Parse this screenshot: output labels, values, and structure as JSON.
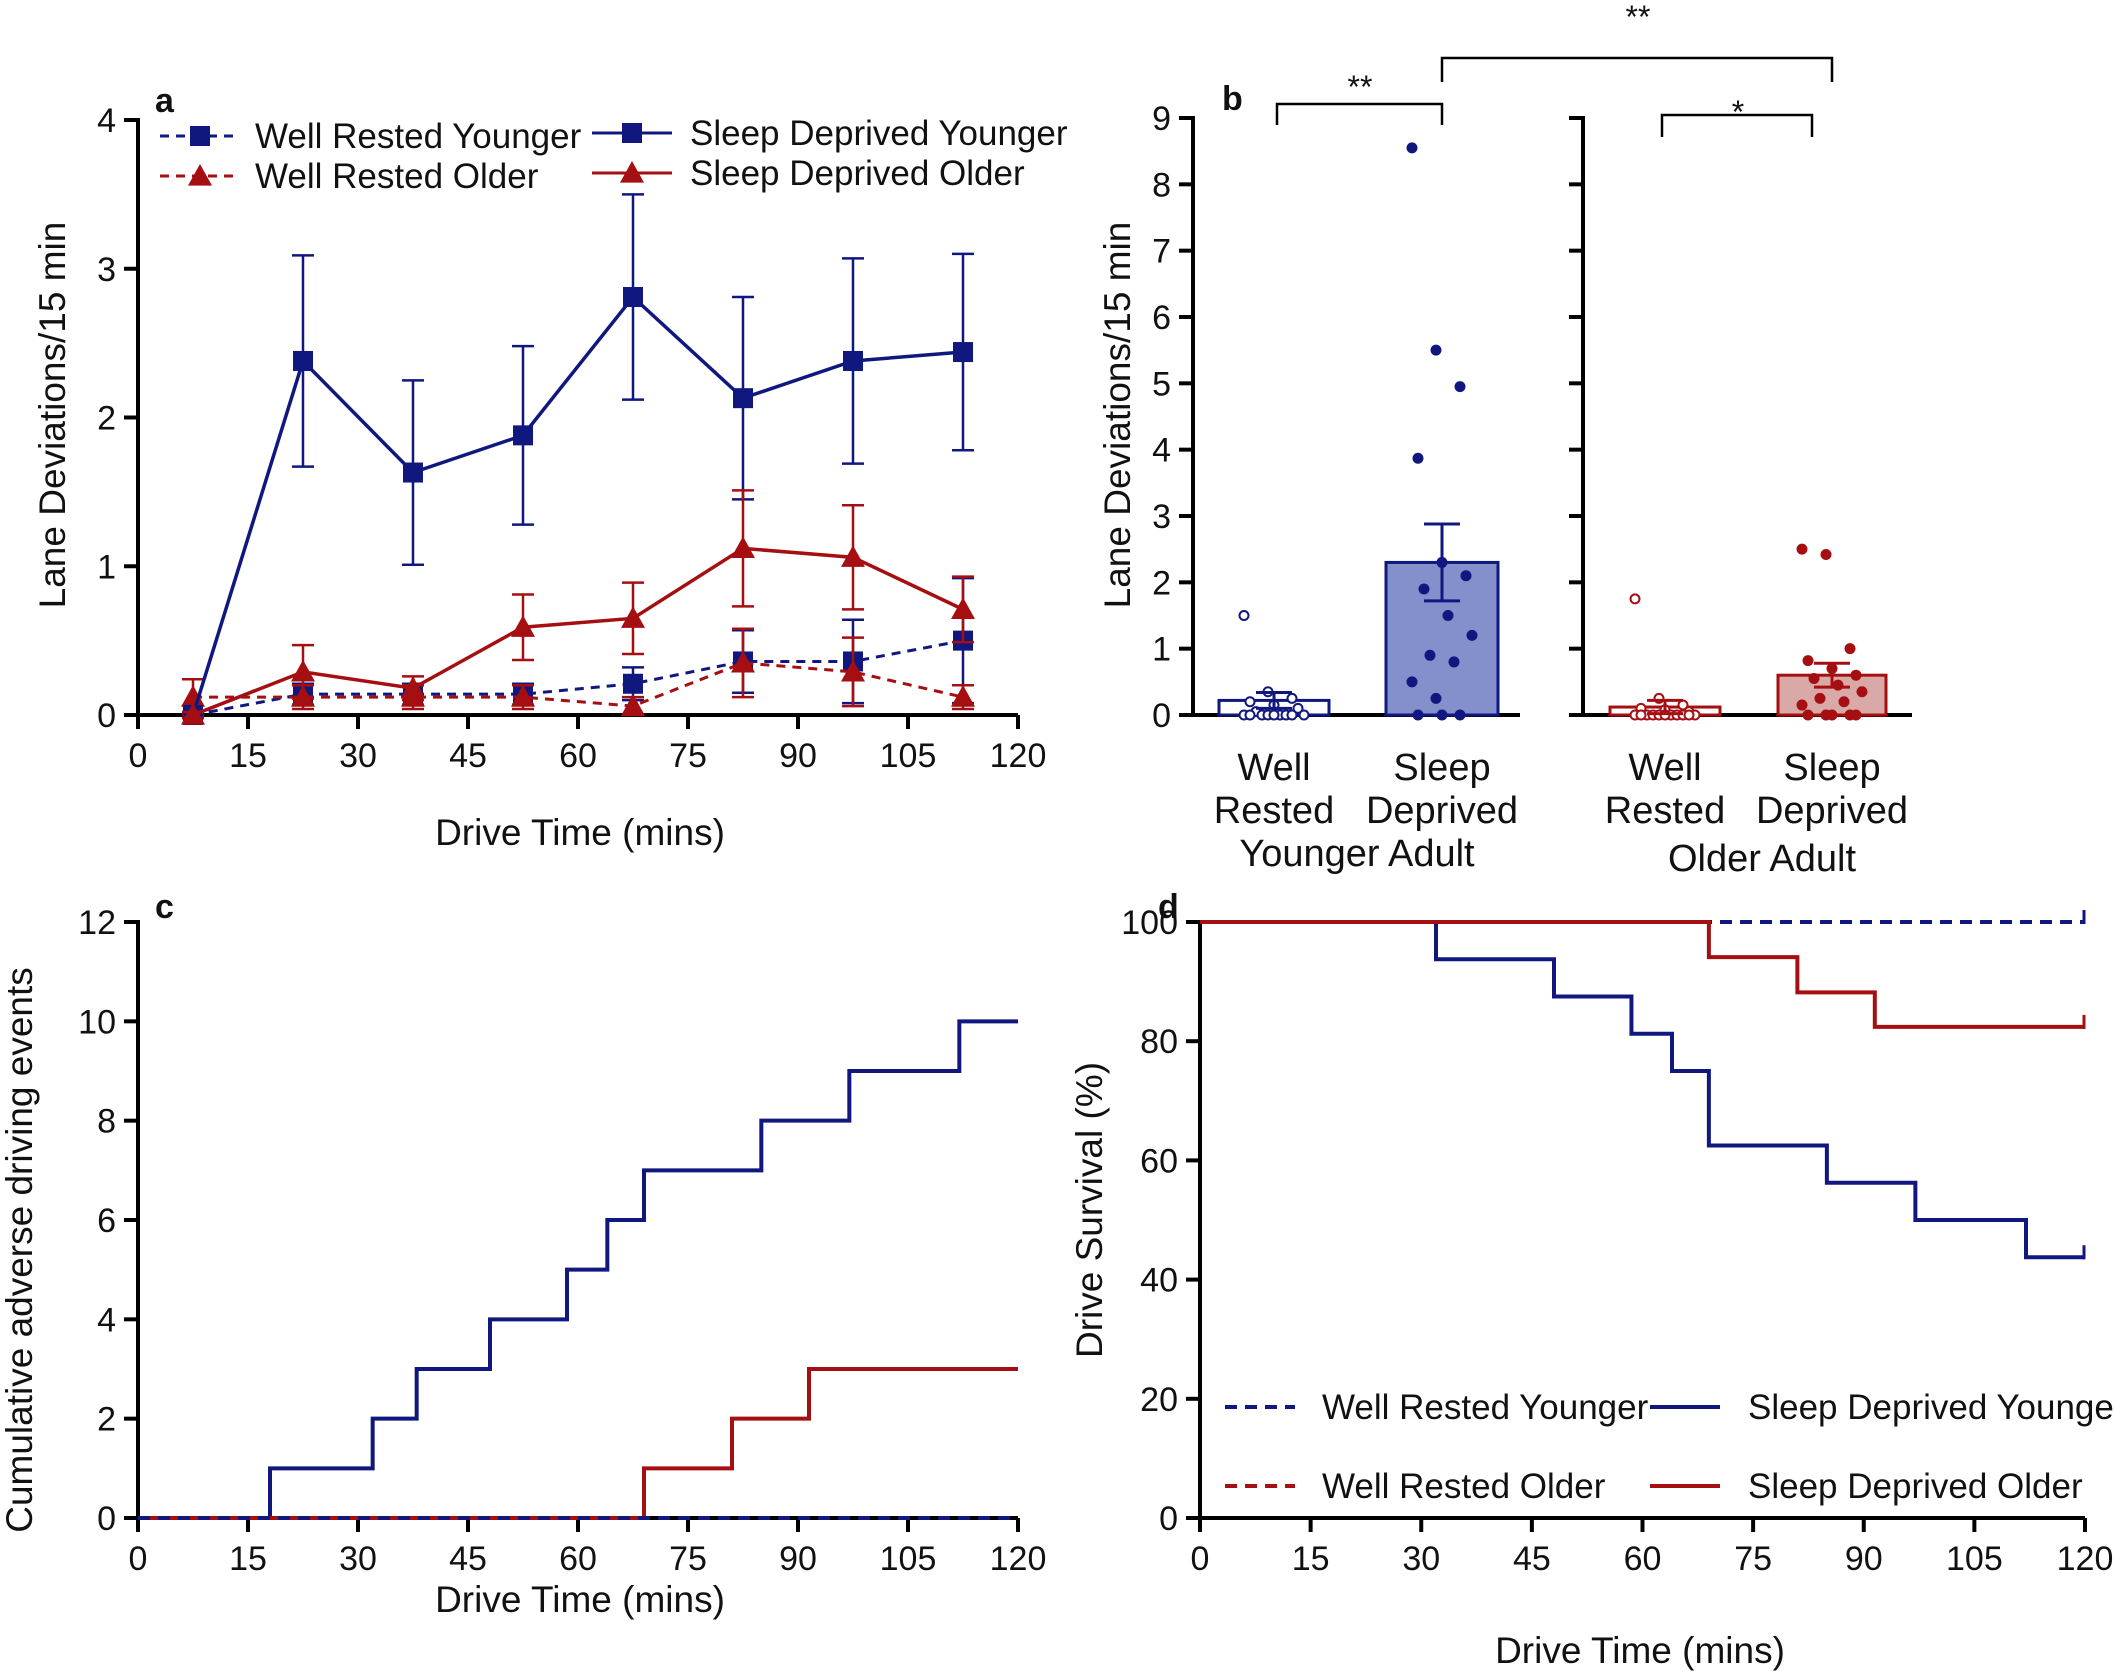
{
  "colors": {
    "younger": "#10187F",
    "older": "#A60F12",
    "younger_fill": "#8390CC",
    "older_fill": "#D9A9A8"
  },
  "panel_a": {
    "label": "a",
    "xlabel": "Drive Time (mins)",
    "ylabel": "Lane Deviations/15 min",
    "legend": [
      "Well Rested Younger",
      "Well Rested Older",
      "Sleep Deprived Younger",
      "Sleep Deprived Older"
    ]
  },
  "panel_b": {
    "label": "b",
    "ylabel": "Lane Deviations/15 min",
    "categories": [
      "Well",
      "Rested",
      "Sleep",
      "Deprived",
      "Well",
      "Rested",
      "Sleep",
      "Deprived"
    ],
    "groups": [
      "Younger Adult",
      "Older Adult"
    ],
    "sig": [
      "**",
      "**",
      "*"
    ]
  },
  "panel_c": {
    "label": "c",
    "xlabel": "Drive Time (mins)",
    "ylabel": "Cumulative adverse driving events"
  },
  "panel_d": {
    "label": "d",
    "xlabel": "Drive Time (mins)",
    "ylabel": "Drive Survival  (%)",
    "legend": [
      "Well Rested Younger",
      "Sleep Deprived Younger",
      "Well Rested Older",
      "Sleep Deprived Older"
    ]
  },
  "chart_data": [
    {
      "panel": "a",
      "type": "line",
      "xlim": [
        0,
        120
      ],
      "ylim": [
        0,
        4
      ],
      "xticks": [
        0,
        15,
        30,
        45,
        60,
        75,
        90,
        105,
        120
      ],
      "yticks": [
        0,
        1,
        2,
        3,
        4
      ],
      "x": [
        7.5,
        22.5,
        37.5,
        52.5,
        67.5,
        82.5,
        97.5,
        112.5
      ],
      "series": [
        {
          "name": "Well Rested Younger",
          "color": "younger",
          "dash": true,
          "marker": "square",
          "values": [
            0.0,
            0.14,
            0.14,
            0.14,
            0.21,
            0.36,
            0.36,
            0.5
          ],
          "err": [
            0.02,
            0.07,
            0.07,
            0.07,
            0.11,
            0.21,
            0.28,
            0.42
          ]
        },
        {
          "name": "Well Rested Older",
          "color": "older",
          "dash": true,
          "marker": "triangle",
          "values": [
            0.12,
            0.12,
            0.12,
            0.12,
            0.06,
            0.35,
            0.29,
            0.12
          ],
          "err": [
            0.12,
            0.08,
            0.08,
            0.08,
            0.06,
            0.23,
            0.23,
            0.08
          ]
        },
        {
          "name": "Sleep Deprived Younger",
          "color": "younger",
          "dash": false,
          "marker": "square",
          "values": [
            0.0,
            2.38,
            1.63,
            1.88,
            2.81,
            2.13,
            2.38,
            2.44
          ],
          "err": [
            0.02,
            0.71,
            0.62,
            0.6,
            0.69,
            0.68,
            0.69,
            0.66
          ]
        },
        {
          "name": "Sleep Deprived Older",
          "color": "older",
          "dash": false,
          "marker": "triangle",
          "values": [
            0.0,
            0.29,
            0.18,
            0.59,
            0.65,
            1.12,
            1.06,
            0.71
          ],
          "err": [
            0.02,
            0.18,
            0.08,
            0.22,
            0.24,
            0.39,
            0.35,
            0.22
          ]
        }
      ]
    },
    {
      "panel": "b",
      "type": "bar",
      "ylim": [
        0,
        9
      ],
      "yticks": [
        0,
        1,
        2,
        3,
        4,
        5,
        6,
        7,
        8,
        9
      ],
      "bars": [
        {
          "name": "Well Rested Younger",
          "color": "younger",
          "filled": false,
          "mean": 0.22,
          "sem": 0.12,
          "points": [
            1.5,
            0.35,
            0.25,
            0.2,
            0.15,
            0.1,
            0.05,
            0.0,
            0.0,
            0.0,
            0.0,
            0.0,
            0.0,
            0.0,
            0.0,
            0.0
          ]
        },
        {
          "name": "Sleep Deprived Younger",
          "color": "younger",
          "filled": true,
          "mean": 2.3,
          "sem": 0.58,
          "points": [
            8.55,
            5.5,
            4.95,
            3.87,
            2.3,
            2.1,
            1.9,
            1.5,
            1.2,
            0.9,
            0.8,
            0.5,
            0.25,
            0.0,
            0.0,
            0.0
          ]
        },
        {
          "name": "Well Rested Older",
          "color": "older",
          "filled": false,
          "mean": 0.12,
          "sem": 0.1,
          "points": [
            1.75,
            0.25,
            0.15,
            0.1,
            0.08,
            0.05,
            0.0,
            0.0,
            0.0,
            0.0,
            0.0,
            0.0,
            0.0,
            0.0,
            0.0,
            0.0,
            0.0
          ]
        },
        {
          "name": "Sleep Deprived Older",
          "color": "older",
          "filled": true,
          "mean": 0.6,
          "sem": 0.18,
          "points": [
            2.5,
            2.42,
            1.0,
            0.82,
            0.7,
            0.6,
            0.55,
            0.45,
            0.35,
            0.25,
            0.2,
            0.15,
            0.0,
            0.0,
            0.0,
            0.0,
            0.0
          ]
        }
      ]
    },
    {
      "panel": "c",
      "type": "line",
      "step": true,
      "xlim": [
        0,
        120
      ],
      "ylim": [
        0,
        12
      ],
      "xticks": [
        0,
        15,
        30,
        45,
        60,
        75,
        90,
        105,
        120
      ],
      "yticks": [
        0,
        2,
        4,
        6,
        8,
        10,
        12
      ],
      "series": [
        {
          "name": "Sleep Deprived Younger",
          "color": "younger",
          "dash": false,
          "events": [
            18,
            32,
            38,
            48,
            58.5,
            64,
            69,
            85,
            97,
            112
          ],
          "final": 11
        },
        {
          "name": "Sleep Deprived Older",
          "color": "older",
          "dash": false,
          "events": [
            69,
            81,
            91.5
          ],
          "final": 3
        },
        {
          "name": "Well Rested Older",
          "color": "older",
          "dash": true,
          "events": [],
          "final": 0
        },
        {
          "name": "Well Rested Younger",
          "color": "younger",
          "dash": true,
          "events": [],
          "final": 0
        }
      ]
    },
    {
      "panel": "d",
      "type": "line",
      "step": true,
      "xlim": [
        0,
        120
      ],
      "ylim": [
        0,
        100
      ],
      "xticks": [
        0,
        15,
        30,
        45,
        60,
        75,
        90,
        105,
        120
      ],
      "yticks": [
        0,
        20,
        40,
        60,
        80,
        100
      ],
      "series": [
        {
          "name": "Well Rested Younger",
          "color": "younger",
          "dash": true,
          "steps": [
            [
              0,
              100
            ],
            [
              120,
              100
            ]
          ]
        },
        {
          "name": "Sleep Deprived Younger",
          "color": "younger",
          "dash": false,
          "steps": [
            [
              0,
              100
            ],
            [
              32,
              93.75
            ],
            [
              48,
              87.5
            ],
            [
              58.5,
              81.25
            ],
            [
              64,
              75
            ],
            [
              69,
              62.5
            ],
            [
              85,
              56.25
            ],
            [
              97,
              50
            ],
            [
              112,
              43.75
            ],
            [
              120,
              43.75
            ]
          ]
        },
        {
          "name": "Well Rested Older",
          "color": "older",
          "dash": true,
          "steps": [
            [
              0,
              100
            ],
            [
              69,
              100
            ]
          ]
        },
        {
          "name": "Sleep Deprived Older",
          "color": "older",
          "dash": false,
          "steps": [
            [
              0,
              100
            ],
            [
              69,
              94.1
            ],
            [
              81,
              88.2
            ],
            [
              91.5,
              82.4
            ],
            [
              120,
              82.4
            ]
          ]
        }
      ]
    }
  ]
}
